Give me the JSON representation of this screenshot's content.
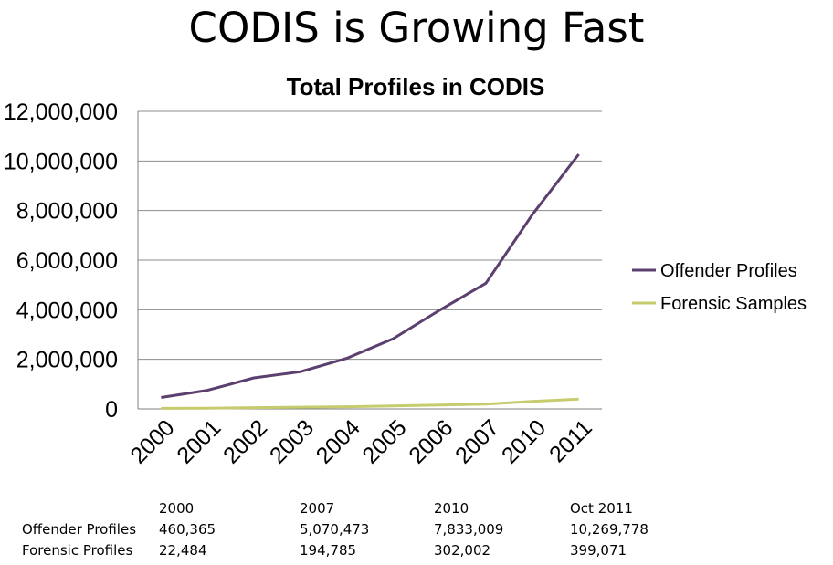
{
  "slide": {
    "title": "CODIS is Growing Fast"
  },
  "chart_data": {
    "type": "line",
    "title": "Total Profiles in CODIS",
    "categories": [
      "2000",
      "2001",
      "2002",
      "2003",
      "2004",
      "2005",
      "2006",
      "2007",
      "2010",
      "2011"
    ],
    "series": [
      {
        "name": "Offender Profiles",
        "color": "#5b3f6e",
        "values": [
          460365,
          750000,
          1250000,
          1500000,
          2040000,
          2830000,
          3980000,
          5070473,
          7833009,
          10269778
        ]
      },
      {
        "name": "Forensic Samples",
        "color": "#c6cc6e",
        "values": [
          22484,
          30000,
          50000,
          70000,
          90000,
          120000,
          155000,
          194785,
          302002,
          399071
        ]
      }
    ],
    "y_ticks": [
      "0",
      "2,000,000",
      "4,000,000",
      "6,000,000",
      "8,000,000",
      "10,000,000",
      "12,000,000"
    ],
    "ylim": [
      0,
      12000000
    ],
    "grid": true,
    "legend": "right"
  },
  "table": {
    "headers": [
      "2000",
      "2007",
      "2010",
      "Oct 2011"
    ],
    "rows": [
      {
        "label": "Offender Profiles",
        "values": [
          "460,365",
          "5,070,473",
          "7,833,009",
          "10,269,778"
        ]
      },
      {
        "label": "Forensic Profiles",
        "values": [
          "22,484",
          "194,785",
          "302,002",
          "399,071"
        ]
      }
    ]
  }
}
